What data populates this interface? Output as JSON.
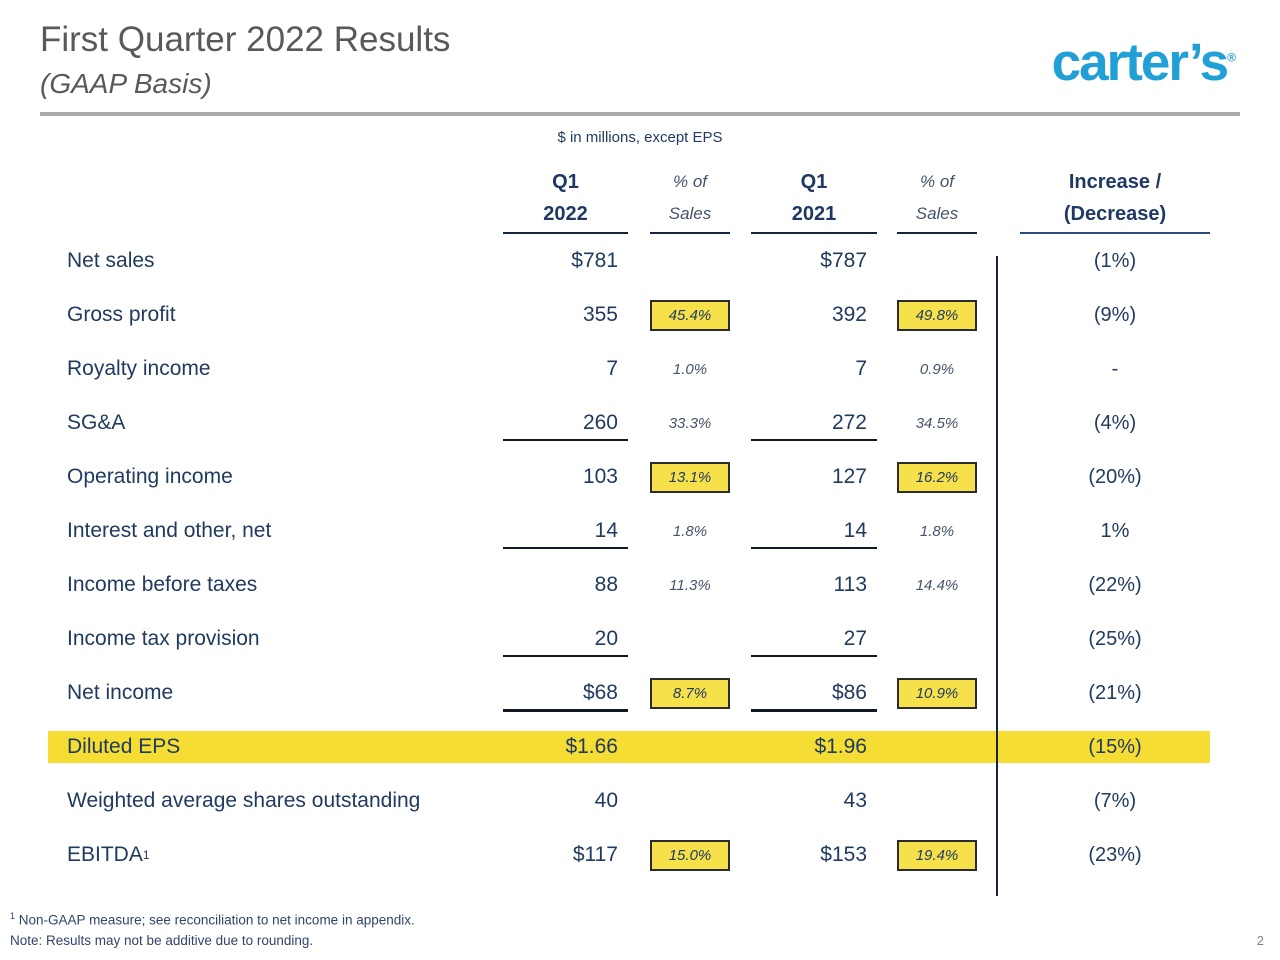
{
  "header": {
    "title": "First Quarter 2022 Results",
    "subtitle": "(GAAP Basis)",
    "logo_text": "carter’s",
    "logo_mark": "®",
    "logo_color": "#219FD7"
  },
  "table": {
    "units_note": "$ in millions, except EPS",
    "columns": {
      "y2022_l1": "Q1",
      "y2022_l2": "2022",
      "pct1_l1": "% of",
      "pct1_l2": "Sales",
      "y2021_l1": "Q1",
      "y2021_l2": "2021",
      "pct2_l1": "% of",
      "pct2_l2": "Sales",
      "inc_l1": "Increase /",
      "inc_l2": "(Decrease)"
    },
    "rows": [
      {
        "label": "Net sales",
        "v2022": "$781",
        "p2022": "",
        "p2022_boxed": false,
        "v2021": "$787",
        "p2021": "",
        "p2021_boxed": false,
        "change": "(1%)",
        "rule": "none",
        "highlight": false
      },
      {
        "label": "Gross profit",
        "v2022": "355",
        "p2022": "45.4%",
        "p2022_boxed": true,
        "v2021": "392",
        "p2021": "49.8%",
        "p2021_boxed": true,
        "change": "(9%)",
        "rule": "none",
        "highlight": false
      },
      {
        "label": "Royalty income",
        "v2022": "7",
        "p2022": "1.0%",
        "p2022_boxed": false,
        "v2021": "7",
        "p2021": "0.9%",
        "p2021_boxed": false,
        "change": "-",
        "rule": "none",
        "highlight": false
      },
      {
        "label": "SG&A",
        "v2022": "260",
        "p2022": "33.3%",
        "p2022_boxed": false,
        "v2021": "272",
        "p2021": "34.5%",
        "p2021_boxed": false,
        "change": "(4%)",
        "rule": "thin",
        "highlight": false
      },
      {
        "label": "Operating income",
        "v2022": "103",
        "p2022": "13.1%",
        "p2022_boxed": true,
        "v2021": "127",
        "p2021": "16.2%",
        "p2021_boxed": true,
        "change": "(20%)",
        "rule": "none",
        "highlight": false
      },
      {
        "label": "Interest and other, net",
        "v2022": "14",
        "p2022": "1.8%",
        "p2022_boxed": false,
        "v2021": "14",
        "p2021": "1.8%",
        "p2021_boxed": false,
        "change": "1%",
        "rule": "thin",
        "highlight": false
      },
      {
        "label": "Income before taxes",
        "v2022": "88",
        "p2022": "11.3%",
        "p2022_boxed": false,
        "v2021": "113",
        "p2021": "14.4%",
        "p2021_boxed": false,
        "change": "(22%)",
        "rule": "none",
        "highlight": false
      },
      {
        "label": "Income tax provision",
        "v2022": "20",
        "p2022": "",
        "p2022_boxed": false,
        "v2021": "27",
        "p2021": "",
        "p2021_boxed": false,
        "change": "(25%)",
        "rule": "thin",
        "highlight": false
      },
      {
        "label": "Net income",
        "v2022": "$68",
        "p2022": "8.7%",
        "p2022_boxed": true,
        "v2021": "$86",
        "p2021": "10.9%",
        "p2021_boxed": true,
        "change": "(21%)",
        "rule": "thick",
        "highlight": false
      },
      {
        "label": "Diluted EPS",
        "v2022": "$1.66",
        "p2022": "",
        "p2022_boxed": false,
        "v2021": "$1.96",
        "p2021": "",
        "p2021_boxed": false,
        "change": "(15%)",
        "rule": "none",
        "highlight": true
      },
      {
        "label": "Weighted average shares outstanding",
        "v2022": "40",
        "p2022": "",
        "p2022_boxed": false,
        "v2021": "43",
        "p2021": "",
        "p2021_boxed": false,
        "change": "(7%)",
        "rule": "none",
        "highlight": false
      },
      {
        "label": "EBITDA",
        "sup": "1",
        "v2022": "$117",
        "p2022": "15.0%",
        "p2022_boxed": true,
        "v2021": "$153",
        "p2021": "19.4%",
        "p2021_boxed": true,
        "change": "(23%)",
        "rule": "none",
        "highlight": false
      }
    ]
  },
  "footnotes": {
    "sup1": "1",
    "line1": "Non-GAAP measure; see reconciliation to net income in appendix.",
    "line2": "Note: Results may not be additive due to rounding."
  },
  "page_number": "2",
  "colors": {
    "navy_text": "#203A60",
    "highlight_yellow": "#F5DD33",
    "badge_yellow": "#F7E14B",
    "logo_blue": "#219FD7",
    "rule_gray": "#A7A9AC"
  }
}
